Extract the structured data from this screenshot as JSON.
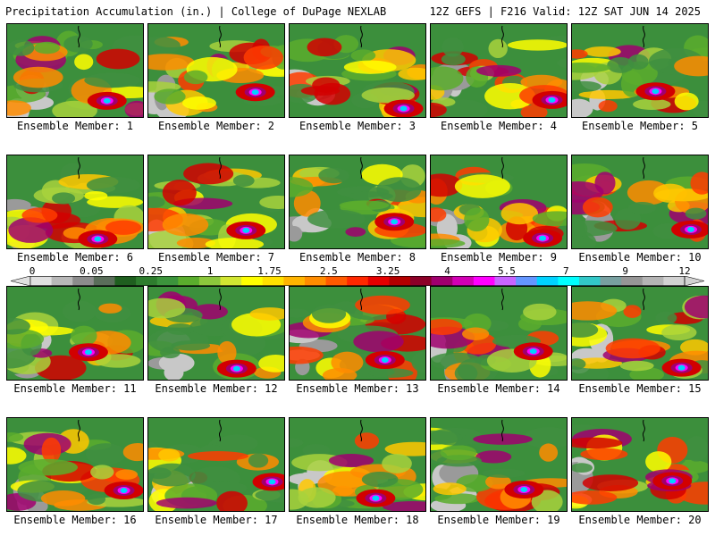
{
  "header": {
    "left_title": "Precipitation Accumulation (in.) | College of DuPage NEXLAB",
    "right_title": "12Z GEFS | F216 Valid: 12Z SAT JUN 14 2025"
  },
  "colorbar": {
    "labels": [
      "0",
      "0.05",
      "0.25",
      "1",
      "1.75",
      "2.5",
      "3.25",
      "4",
      "5.5",
      "7",
      "9",
      "12"
    ],
    "colors": [
      "#e0e0e0",
      "#b8b8b8",
      "#8c8c8c",
      "#5a6e5a",
      "#1f5f1f",
      "#2e7d2e",
      "#3c943c",
      "#5aad2d",
      "#8cc83c",
      "#d2e632",
      "#ffff00",
      "#ffe000",
      "#ffb400",
      "#ff8c00",
      "#ff5a00",
      "#ff2800",
      "#e60000",
      "#b40000",
      "#8c0028",
      "#a0006e",
      "#d200b4",
      "#ff00ff",
      "#c864ff",
      "#6496ff",
      "#00d2ff",
      "#00ffff",
      "#32c8c8",
      "#78a0a0",
      "#969696",
      "#b4b4b4",
      "#d2d2d2"
    ]
  },
  "panels": [
    {
      "label": "Ensemble Member: 1"
    },
    {
      "label": "Ensemble Member: 2"
    },
    {
      "label": "Ensemble Member: 3"
    },
    {
      "label": "Ensemble Member: 4"
    },
    {
      "label": "Ensemble Member: 5"
    },
    {
      "label": "Ensemble Member: 6"
    },
    {
      "label": "Ensemble Member: 7"
    },
    {
      "label": "Ensemble Member: 8"
    },
    {
      "label": "Ensemble Member: 9"
    },
    {
      "label": "Ensemble Member: 10"
    },
    {
      "label": "Ensemble Member: 11"
    },
    {
      "label": "Ensemble Member: 12"
    },
    {
      "label": "Ensemble Member: 13"
    },
    {
      "label": "Ensemble Member: 14"
    },
    {
      "label": "Ensemble Member: 15"
    },
    {
      "label": "Ensemble Member: 16"
    },
    {
      "label": "Ensemble Member: 17"
    },
    {
      "label": "Ensemble Member: 18"
    },
    {
      "label": "Ensemble Member: 19"
    },
    {
      "label": "Ensemble Member: 20"
    }
  ]
}
